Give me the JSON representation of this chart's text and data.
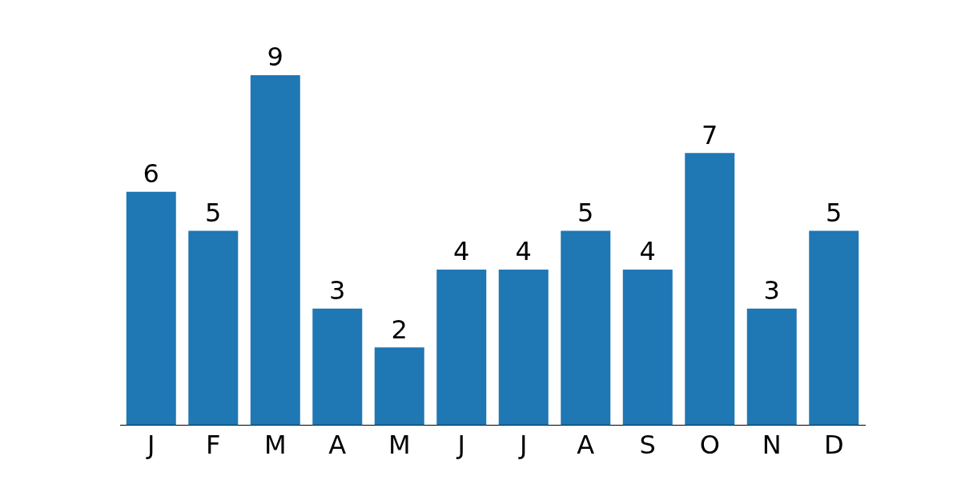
{
  "chart_data": {
    "type": "bar",
    "categories": [
      "J",
      "F",
      "M",
      "A",
      "M",
      "J",
      "J",
      "A",
      "S",
      "O",
      "N",
      "D"
    ],
    "values": [
      6,
      5,
      9,
      3,
      2,
      4,
      4,
      5,
      4,
      7,
      3,
      5
    ],
    "color": "#1f77b4",
    "data_labels": true,
    "grid": false,
    "legend": false,
    "tick_labels": "x"
  }
}
